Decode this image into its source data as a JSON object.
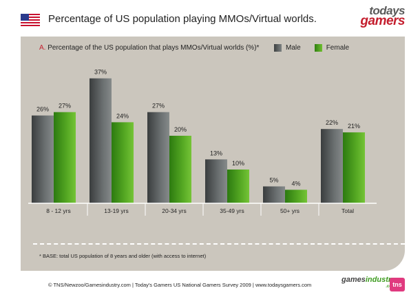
{
  "page": {
    "title": "Percentage of US population playing MMOs/Virtual worlds.",
    "logo": {
      "line1": "todays",
      "line2": "gamers"
    },
    "footnote": "* BASE: total US population of 8 years and older (with access to internet)",
    "footer": "© TNS/Newzoo/Gamesindustry.com | Today's Gamers US National Gamers Survey 2009 | www.todaysgamers.com",
    "partner_logos": {
      "gi_part1": "games",
      "gi_part2": "industry",
      "gi_sub": ".com",
      "tns": "tns"
    }
  },
  "colors": {
    "male": "#5d6161",
    "female": "#4c9e1f",
    "panel": "#cbc6bd"
  },
  "chart_data": {
    "type": "bar",
    "title_prefix": "A.",
    "title": "Percentage of the US population that plays MMOs/Virtual worlds (%)*",
    "categories": [
      "8 - 12 yrs",
      "13-19 yrs",
      "20-34 yrs",
      "35-49 yrs",
      "50+ yrs",
      "Total"
    ],
    "series": [
      {
        "name": "Male",
        "values": [
          26,
          37,
          27,
          13,
          5,
          22
        ],
        "labels": [
          "26%",
          "37%",
          "27%",
          "13%",
          "5%",
          "22%"
        ]
      },
      {
        "name": "Female",
        "values": [
          27,
          24,
          20,
          10,
          4,
          21
        ],
        "labels": [
          "27%",
          "24%",
          "20%",
          "10%",
          "4%",
          "21%"
        ]
      }
    ],
    "ylim": [
      0,
      40
    ],
    "grid": false,
    "legend": "top-right"
  }
}
